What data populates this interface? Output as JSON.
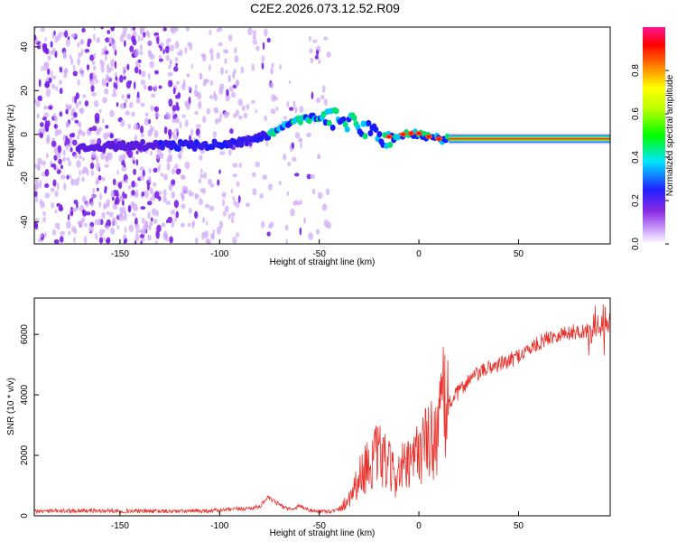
{
  "figure": {
    "title": "C2E2.2026.073.12.52.R09"
  },
  "colors": {
    "snr_line": "#e8332d",
    "axis": "#000000"
  },
  "chart_data": [
    {
      "type": "heatmap",
      "xlabel": "Height of straight line (km)",
      "ylabel": "Frequency (Hz)",
      "xlim": [
        -193,
        96
      ],
      "ylim": [
        -50,
        49
      ],
      "xticks": [
        -150,
        -100,
        -50,
        0,
        50
      ],
      "yticks": [
        -40,
        -20,
        0,
        20,
        40
      ],
      "grid": false,
      "ridge": {
        "x": [
          -171,
          -150,
          -130,
          -110,
          -95,
          -85,
          -75,
          -65,
          -58,
          -52,
          -46,
          -40,
          -33,
          -28,
          -24,
          -20,
          -15,
          -8,
          0,
          10,
          30,
          60,
          94
        ],
        "y": [
          -6,
          -5,
          -5,
          -5,
          -4,
          -3,
          0,
          4,
          7,
          8,
          7,
          7,
          5,
          3,
          2,
          -2,
          -2,
          0,
          0,
          -2,
          -2,
          -2,
          -2
        ]
      },
      "colorbar": {
        "label": "Normalized spectral amplitude",
        "ticks": [
          "0.0",
          "0.2",
          "0.4",
          "0.6",
          "0.8"
        ],
        "range": [
          0,
          1
        ]
      }
    },
    {
      "type": "line",
      "xlabel": "Height of straight line (km)",
      "ylabel": "SNR (10 * v/v)",
      "xlim": [
        -193,
        96
      ],
      "ylim": [
        0,
        7200
      ],
      "xticks": [
        -150,
        -100,
        -50,
        0,
        50
      ],
      "yticks": [
        0,
        2000,
        4000,
        6000
      ],
      "grid": false,
      "series": [
        {
          "x": [
            -193,
            -170,
            -150,
            -130,
            -110,
            -95,
            -85,
            -80,
            -76,
            -72,
            -68,
            -64,
            -60,
            -56,
            -52,
            -48,
            -44,
            -40,
            -36,
            -32,
            -28,
            -24,
            -20,
            -16,
            -12,
            -8,
            -4,
            0,
            4,
            8,
            12,
            16,
            20,
            25,
            30,
            35,
            40,
            45,
            50,
            55,
            60,
            65,
            70,
            75,
            80,
            85,
            90,
            95
          ],
          "values": [
            150,
            170,
            160,
            150,
            160,
            200,
            250,
            300,
            600,
            450,
            300,
            200,
            350,
            200,
            150,
            150,
            150,
            200,
            500,
            1000,
            1500,
            1800,
            2000,
            1700,
            1300,
            1600,
            1600,
            2200,
            2400,
            2600,
            3600,
            3800,
            4100,
            4500,
            4700,
            4900,
            5000,
            5100,
            5300,
            5500,
            5700,
            5900,
            6000,
            6050,
            6100,
            6100,
            6200,
            6300
          ]
        }
      ]
    }
  ]
}
